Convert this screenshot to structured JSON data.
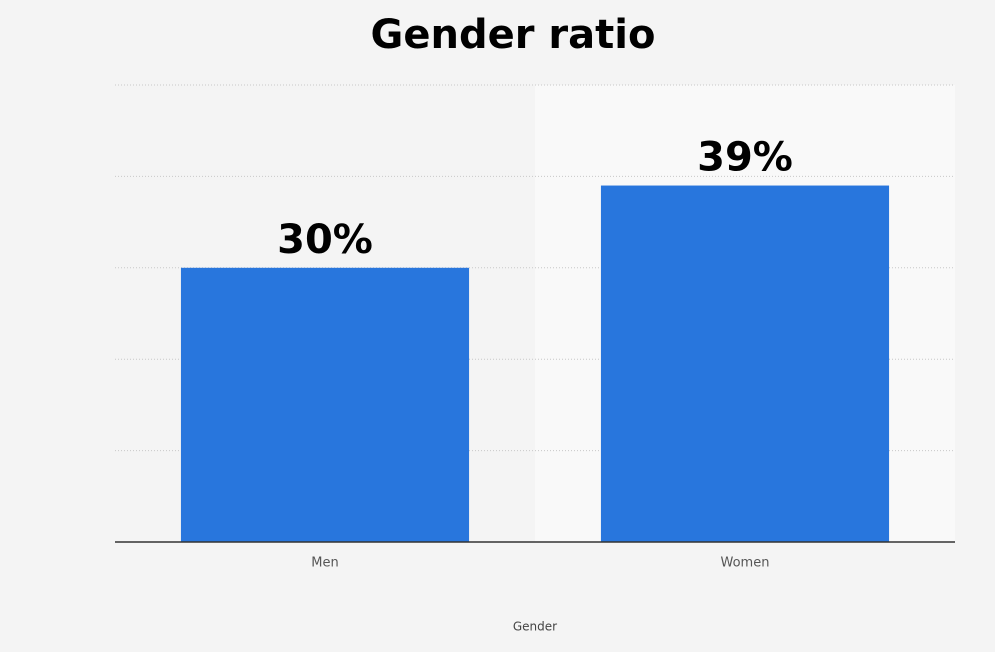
{
  "chart_data": {
    "type": "bar",
    "title": "Gender ratio",
    "x_label": "Gender",
    "categories": [
      "Men",
      "Women"
    ],
    "values": [
      30,
      39
    ],
    "value_labels": [
      "30%",
      "39%"
    ],
    "color": "#2876dd",
    "ylim": [
      0,
      50
    ],
    "grid": true
  }
}
